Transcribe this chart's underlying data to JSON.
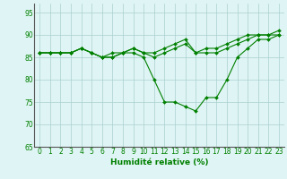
{
  "x": [
    0,
    1,
    2,
    3,
    4,
    5,
    6,
    7,
    8,
    9,
    10,
    11,
    12,
    13,
    14,
    15,
    16,
    17,
    18,
    19,
    20,
    21,
    22,
    23
  ],
  "lines": [
    [
      86,
      86,
      86,
      86,
      87,
      86,
      85,
      85,
      86,
      86,
      85,
      80,
      75,
      75,
      74,
      73,
      76,
      76,
      80,
      85,
      87,
      89,
      89,
      90
    ],
    [
      86,
      86,
      86,
      86,
      87,
      86,
      85,
      85,
      86,
      87,
      86,
      85,
      86,
      87,
      88,
      86,
      86,
      86,
      87,
      88,
      89,
      90,
      90,
      90
    ],
    [
      86,
      86,
      86,
      86,
      87,
      86,
      85,
      86,
      86,
      87,
      86,
      86,
      87,
      88,
      89,
      86,
      87,
      87,
      88,
      89,
      90,
      90,
      90,
      91
    ]
  ],
  "line_color": "#008000",
  "marker": "D",
  "markersize": 2.0,
  "linewidth": 0.8,
  "xlim": [
    -0.5,
    23.5
  ],
  "ylim": [
    65,
    97
  ],
  "yticks": [
    65,
    70,
    75,
    80,
    85,
    90,
    95
  ],
  "xticks": [
    0,
    1,
    2,
    3,
    4,
    5,
    6,
    7,
    8,
    9,
    10,
    11,
    12,
    13,
    14,
    15,
    16,
    17,
    18,
    19,
    20,
    21,
    22,
    23
  ],
  "xlabel": "Humidité relative (%)",
  "background_color": "#dff4f4",
  "grid_color": "#aacfcf",
  "text_color": "#008000",
  "tick_fontsize": 5.5,
  "label_fontsize": 6.5
}
